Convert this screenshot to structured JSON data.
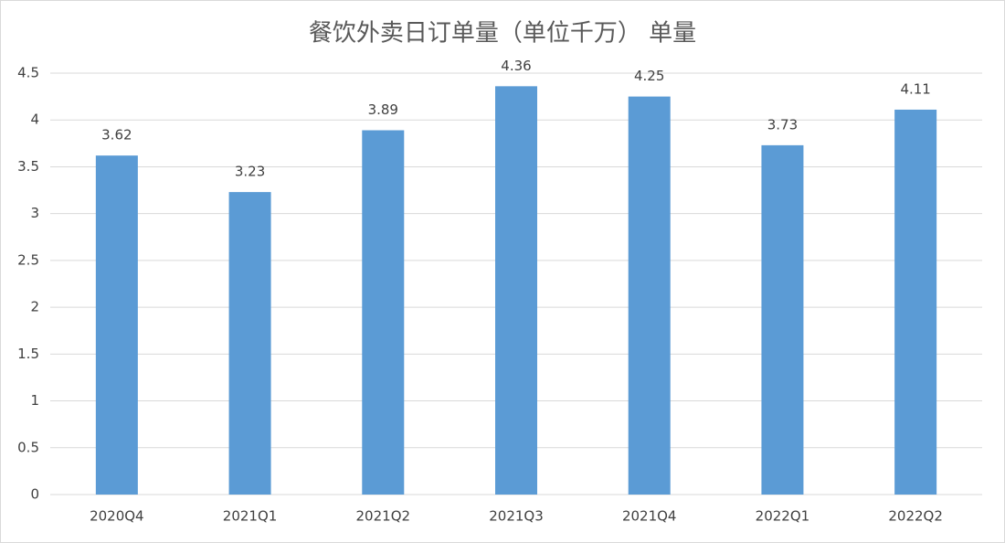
{
  "chart_data": {
    "type": "bar",
    "title": "餐饮外卖日订单量（单位千万） 单量",
    "categories": [
      "2020Q4",
      "2021Q1",
      "2021Q2",
      "2021Q3",
      "2021Q4",
      "2022Q1",
      "2022Q2"
    ],
    "values": [
      3.62,
      3.23,
      3.89,
      4.36,
      4.25,
      3.73,
      4.11
    ],
    "color": "#5b9bd5",
    "ylim": [
      0,
      4.5
    ],
    "yticks": [
      0,
      0.5,
      1,
      1.5,
      2,
      2.5,
      3,
      3.5,
      4,
      4.5
    ],
    "grid": true
  }
}
